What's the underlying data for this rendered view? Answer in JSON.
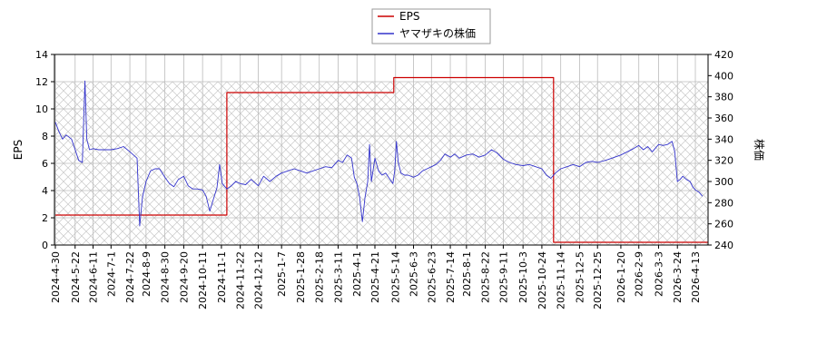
{
  "chart_data": {
    "type": "line",
    "title": "",
    "xlabel": "",
    "grid": true,
    "legend_position": "top-center",
    "x_ticks": [
      "2024-4-30",
      "2024-5-22",
      "2024-6-11",
      "2024-7-1",
      "2024-7-22",
      "2024-8-9",
      "2024-8-30",
      "2024-9-20",
      "2024-10-11",
      "2024-11-1",
      "2024-11-22",
      "2024-12-12",
      "2025-1-7",
      "2025-1-28",
      "2025-2-18",
      "2025-3-11",
      "2025-4-1",
      "2025-4-21",
      "2025-5-14",
      "2025-6-3",
      "2025-6-23",
      "2025-7-14",
      "2025-8-1",
      "2025-8-22",
      "2025-9-11",
      "2025-10-3",
      "2025-10-24",
      "2025-11-14",
      "2025-12-5",
      "2025-12-25",
      "2026-1-20",
      "2026-2-9",
      "2026-3-3",
      "2026-3-24",
      "2026-4-13"
    ],
    "y_left": {
      "label": "EPS",
      "range": [
        0,
        14
      ],
      "ticks": [
        0,
        2,
        4,
        6,
        8,
        10,
        12,
        14
      ]
    },
    "y_right": {
      "label": "株価",
      "range": [
        240,
        420
      ],
      "ticks": [
        240,
        260,
        280,
        300,
        320,
        340,
        360,
        380,
        400,
        420
      ]
    },
    "series": [
      {
        "name": "EPS",
        "axis": "left",
        "color": "#cc0000",
        "step": true,
        "points": [
          {
            "x": "2024-4-30",
            "y": 2.2
          },
          {
            "x": "2024-11-6",
            "y": 2.2
          },
          {
            "x": "2024-11-7",
            "y": 11.2
          },
          {
            "x": "2025-5-11",
            "y": 11.2
          },
          {
            "x": "2025-5-12",
            "y": 12.3
          },
          {
            "x": "2025-11-5",
            "y": 12.3
          },
          {
            "x": "2025-11-6",
            "y": 0.2
          },
          {
            "x": "2026-4-30",
            "y": 0.2
          }
        ]
      },
      {
        "name": "ヤマザキの株価",
        "axis": "right",
        "color": "#3333cc",
        "step": false,
        "points": [
          {
            "x": "2024-4-30",
            "y": 356
          },
          {
            "x": "2024-5-4",
            "y": 347
          },
          {
            "x": "2024-5-8",
            "y": 340
          },
          {
            "x": "2024-5-12",
            "y": 344
          },
          {
            "x": "2024-5-18",
            "y": 340
          },
          {
            "x": "2024-5-22",
            "y": 330
          },
          {
            "x": "2024-5-26",
            "y": 320
          },
          {
            "x": "2024-5-30",
            "y": 318
          },
          {
            "x": "2024-6-2",
            "y": 395
          },
          {
            "x": "2024-6-4",
            "y": 340
          },
          {
            "x": "2024-6-7",
            "y": 330
          },
          {
            "x": "2024-6-11",
            "y": 331
          },
          {
            "x": "2024-6-17",
            "y": 330
          },
          {
            "x": "2024-6-23",
            "y": 330
          },
          {
            "x": "2024-7-1",
            "y": 330
          },
          {
            "x": "2024-7-8",
            "y": 331
          },
          {
            "x": "2024-7-15",
            "y": 333
          },
          {
            "x": "2024-7-22",
            "y": 328
          },
          {
            "x": "2024-7-30",
            "y": 322
          },
          {
            "x": "2024-8-2",
            "y": 258
          },
          {
            "x": "2024-8-5",
            "y": 285
          },
          {
            "x": "2024-8-9",
            "y": 300
          },
          {
            "x": "2024-8-14",
            "y": 310
          },
          {
            "x": "2024-8-19",
            "y": 312
          },
          {
            "x": "2024-8-24",
            "y": 312
          },
          {
            "x": "2024-8-30",
            "y": 304
          },
          {
            "x": "2024-9-4",
            "y": 298
          },
          {
            "x": "2024-9-9",
            "y": 295
          },
          {
            "x": "2024-9-14",
            "y": 302
          },
          {
            "x": "2024-9-20",
            "y": 305
          },
          {
            "x": "2024-9-25",
            "y": 296
          },
          {
            "x": "2024-9-30",
            "y": 293
          },
          {
            "x": "2024-10-5",
            "y": 293
          },
          {
            "x": "2024-10-11",
            "y": 292
          },
          {
            "x": "2024-10-15",
            "y": 286
          },
          {
            "x": "2024-10-19",
            "y": 272
          },
          {
            "x": "2024-10-23",
            "y": 283
          },
          {
            "x": "2024-10-27",
            "y": 294
          },
          {
            "x": "2024-10-30",
            "y": 316
          },
          {
            "x": "2024-11-2",
            "y": 298
          },
          {
            "x": "2024-11-7",
            "y": 293
          },
          {
            "x": "2024-11-12",
            "y": 296
          },
          {
            "x": "2024-11-17",
            "y": 300
          },
          {
            "x": "2024-11-22",
            "y": 298
          },
          {
            "x": "2024-11-28",
            "y": 297
          },
          {
            "x": "2024-12-4",
            "y": 302
          },
          {
            "x": "2024-12-12",
            "y": 296
          },
          {
            "x": "2024-12-18",
            "y": 305
          },
          {
            "x": "2024-12-25",
            "y": 300
          },
          {
            "x": "2025-1-1",
            "y": 305
          },
          {
            "x": "2025-1-7",
            "y": 308
          },
          {
            "x": "2025-1-14",
            "y": 310
          },
          {
            "x": "2025-1-21",
            "y": 312
          },
          {
            "x": "2025-1-28",
            "y": 310
          },
          {
            "x": "2025-2-4",
            "y": 308
          },
          {
            "x": "2025-2-11",
            "y": 310
          },
          {
            "x": "2025-2-18",
            "y": 312
          },
          {
            "x": "2025-2-25",
            "y": 314
          },
          {
            "x": "2025-3-4",
            "y": 313
          },
          {
            "x": "2025-3-11",
            "y": 320
          },
          {
            "x": "2025-3-16",
            "y": 318
          },
          {
            "x": "2025-3-21",
            "y": 325
          },
          {
            "x": "2025-3-26",
            "y": 322
          },
          {
            "x": "2025-3-29",
            "y": 304
          },
          {
            "x": "2025-4-1",
            "y": 298
          },
          {
            "x": "2025-4-4",
            "y": 285
          },
          {
            "x": "2025-4-7",
            "y": 262
          },
          {
            "x": "2025-4-10",
            "y": 285
          },
          {
            "x": "2025-4-13",
            "y": 300
          },
          {
            "x": "2025-4-15",
            "y": 335
          },
          {
            "x": "2025-4-17",
            "y": 300
          },
          {
            "x": "2025-4-21",
            "y": 322
          },
          {
            "x": "2025-4-25",
            "y": 310
          },
          {
            "x": "2025-4-29",
            "y": 306
          },
          {
            "x": "2025-5-3",
            "y": 308
          },
          {
            "x": "2025-5-7",
            "y": 303
          },
          {
            "x": "2025-5-11",
            "y": 298
          },
          {
            "x": "2025-5-13",
            "y": 310
          },
          {
            "x": "2025-5-15",
            "y": 338
          },
          {
            "x": "2025-5-17",
            "y": 318
          },
          {
            "x": "2025-5-20",
            "y": 308
          },
          {
            "x": "2025-5-24",
            "y": 306
          },
          {
            "x": "2025-5-28",
            "y": 306
          },
          {
            "x": "2025-6-3",
            "y": 304
          },
          {
            "x": "2025-6-8",
            "y": 306
          },
          {
            "x": "2025-6-13",
            "y": 310
          },
          {
            "x": "2025-6-18",
            "y": 312
          },
          {
            "x": "2025-6-23",
            "y": 314
          },
          {
            "x": "2025-6-28",
            "y": 316
          },
          {
            "x": "2025-7-3",
            "y": 320
          },
          {
            "x": "2025-7-8",
            "y": 326
          },
          {
            "x": "2025-7-14",
            "y": 323
          },
          {
            "x": "2025-7-19",
            "y": 326
          },
          {
            "x": "2025-7-24",
            "y": 322
          },
          {
            "x": "2025-8-1",
            "y": 325
          },
          {
            "x": "2025-8-8",
            "y": 326
          },
          {
            "x": "2025-8-15",
            "y": 323
          },
          {
            "x": "2025-8-22",
            "y": 325
          },
          {
            "x": "2025-8-29",
            "y": 330
          },
          {
            "x": "2025-9-4",
            "y": 327
          },
          {
            "x": "2025-9-11",
            "y": 321
          },
          {
            "x": "2025-9-18",
            "y": 318
          },
          {
            "x": "2025-9-25",
            "y": 316
          },
          {
            "x": "2025-10-3",
            "y": 315
          },
          {
            "x": "2025-10-10",
            "y": 316
          },
          {
            "x": "2025-10-17",
            "y": 314
          },
          {
            "x": "2025-10-24",
            "y": 312
          },
          {
            "x": "2025-10-29",
            "y": 306
          },
          {
            "x": "2025-11-3",
            "y": 303
          },
          {
            "x": "2025-11-8",
            "y": 308
          },
          {
            "x": "2025-11-14",
            "y": 312
          },
          {
            "x": "2025-11-21",
            "y": 314
          },
          {
            "x": "2025-11-28",
            "y": 316
          },
          {
            "x": "2025-12-5",
            "y": 314
          },
          {
            "x": "2025-12-12",
            "y": 318
          },
          {
            "x": "2025-12-19",
            "y": 319
          },
          {
            "x": "2025-12-25",
            "y": 318
          },
          {
            "x": "2026-1-3",
            "y": 320
          },
          {
            "x": "2026-1-10",
            "y": 322
          },
          {
            "x": "2026-1-20",
            "y": 325
          },
          {
            "x": "2026-1-27",
            "y": 328
          },
          {
            "x": "2026-2-3",
            "y": 331
          },
          {
            "x": "2026-2-9",
            "y": 334
          },
          {
            "x": "2026-2-14",
            "y": 330
          },
          {
            "x": "2026-2-19",
            "y": 333
          },
          {
            "x": "2026-2-24",
            "y": 328
          },
          {
            "x": "2026-3-3",
            "y": 335
          },
          {
            "x": "2026-3-8",
            "y": 334
          },
          {
            "x": "2026-3-13",
            "y": 335
          },
          {
            "x": "2026-3-18",
            "y": 338
          },
          {
            "x": "2026-3-21",
            "y": 328
          },
          {
            "x": "2026-3-24",
            "y": 300
          },
          {
            "x": "2026-3-27",
            "y": 302
          },
          {
            "x": "2026-3-30",
            "y": 305
          },
          {
            "x": "2026-4-3",
            "y": 302
          },
          {
            "x": "2026-4-7",
            "y": 300
          },
          {
            "x": "2026-4-10",
            "y": 295
          },
          {
            "x": "2026-4-13",
            "y": 292
          },
          {
            "x": "2026-4-17",
            "y": 290
          },
          {
            "x": "2026-4-21",
            "y": 286
          }
        ]
      }
    ]
  }
}
